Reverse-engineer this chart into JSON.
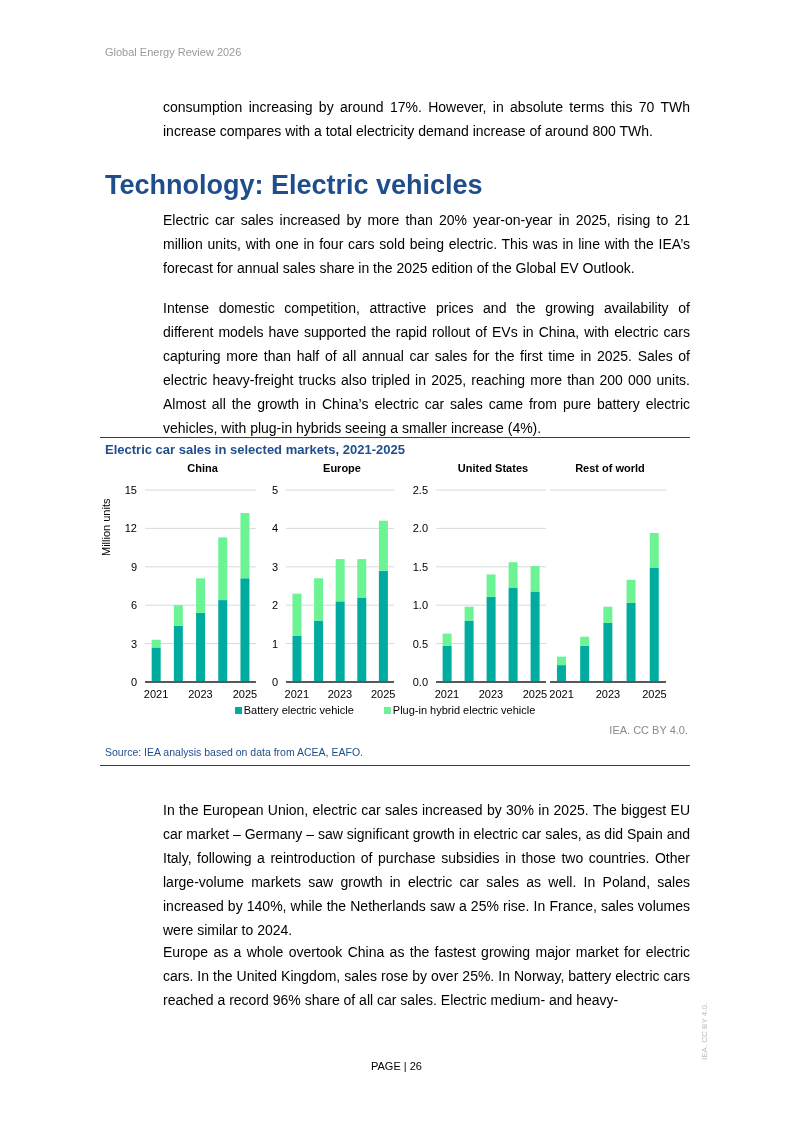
{
  "chart_data": [
    {
      "type": "bar",
      "stacked": true,
      "title": "China",
      "ylabel": "Million units",
      "categories": [
        "2021",
        null,
        "2023",
        null,
        "2025"
      ],
      "series": [
        {
          "name": "Battery electric vehicle",
          "color": "#00ac9f",
          "values": [
            2.7,
            4.4,
            5.4,
            6.4,
            8.1
          ]
        },
        {
          "name": "Plug-in hybrid electric vehicle",
          "color": "#6cf393",
          "values": [
            0.6,
            1.6,
            2.7,
            4.9,
            5.1
          ]
        }
      ],
      "ylim": [
        0,
        15
      ],
      "yticks": [
        0,
        3,
        6,
        9,
        12,
        15
      ],
      "grid": "y",
      "legend": "bottom",
      "annotations": [
        "Global Energy Review 2026",
        "consumption increasing by around 17%. However, in absolute terms this 70 TWh increase compares with a total electricity demand increase of around 800 TWh.",
        "Technology: Electric vehicles",
        "Electric car sales increased by more than 20% year-on-year in 2025, rising to 21 million units, with one in four cars sold being electric. This was in line with the IEA’s forecast for annual sales share in the 2025 edition of the Global EV Outlook.",
        "Intense domestic competition, attractive prices and the growing availability of different models have supported the rapid rollout of EVs in China, with electric cars capturing more than half of all annual car sales for the first time in 2025. Sales of electric heavy-freight trucks also tripled in 2025, reaching more than 200 000 units. Almost all the growth in China’s electric car sales came from pure battery electric vehicles, with plug-in hybrids seeing a smaller increase (4%).",
        "Electric car sales in selected markets, 2021-2025",
        "IEA. CC BY 4.0.",
        "Source: IEA analysis based on data from ACEA, EAFO.",
        "In the European Union, electric car sales increased by 30% in 2025. The biggest EU car market – Germany – saw significant growth in electric car sales, as did Spain and Italy, following a reintroduction of purchase subsidies in those two countries. Other large-volume markets saw growth in electric car sales as well. In Poland, sales increased by 140%, while the Netherlands saw a 25% rise. In France, sales volumes were similar to 2024.",
        "Europe as a whole overtook China as the fastest growing major market for electric cars. In the United Kingdom, sales rose by over 25%. In Norway, battery electric cars reached a record 96% share of all car sales. Electric medium- and heavy-",
        "PAGE | 26",
        "IEA. CC BY 4.0."
      ]
    },
    {
      "type": "bar",
      "stacked": true,
      "title": "Europe",
      "categories": [
        "2021",
        null,
        "2023",
        null,
        "2025"
      ],
      "series": [
        {
          "color": "#00ac9f",
          "values": [
            1.2,
            1.6,
            2.1,
            2.2,
            2.9
          ]
        },
        {
          "color": "#6cf393",
          "values": [
            1.1,
            1.1,
            1.1,
            1.0,
            1.3
          ]
        }
      ],
      "ylim": [
        0,
        5
      ],
      "yticks": [
        0,
        1,
        2,
        3,
        4,
        5
      ],
      "grid": "y"
    },
    {
      "type": "bar",
      "stacked": true,
      "title": "United States",
      "categories": [
        "2021",
        null,
        "2023",
        null,
        "2025"
      ],
      "series": [
        {
          "color": "#00ac9f",
          "values": [
            0.47,
            0.8,
            1.11,
            1.23,
            1.18
          ]
        },
        {
          "color": "#6cf393",
          "values": [
            0.16,
            0.18,
            0.29,
            0.33,
            0.33
          ]
        }
      ],
      "ylim": [
        0,
        2.5
      ],
      "yticks": [
        {
          "value": 0,
          "label": "0.0"
        },
        {
          "value": 0.5,
          "label": "0.5"
        },
        {
          "value": 1,
          "label": "1.0"
        },
        {
          "value": 1.5,
          "label": "1.5"
        },
        {
          "value": 2,
          "label": "2.0"
        },
        {
          "value": 2.5,
          "label": "2.5"
        }
      ],
      "grid": "y"
    },
    {
      "type": "bar",
      "stacked": true,
      "title": "Rest of world",
      "categories": [
        "2021",
        null,
        "2023",
        null,
        "2025"
      ],
      "series": [
        {
          "color": "#00ac9f",
          "values": [
            0.22,
            0.47,
            0.77,
            1.03,
            1.49
          ]
        },
        {
          "color": "#6cf393",
          "values": [
            0.11,
            0.12,
            0.21,
            0.3,
            0.45
          ]
        }
      ],
      "ylim": [
        0,
        2.5
      ],
      "yticks": [
        0,
        0.5,
        1,
        1.5,
        2,
        2.5
      ],
      "grid": "y",
      "tick_labels": "x"
    }
  ]
}
